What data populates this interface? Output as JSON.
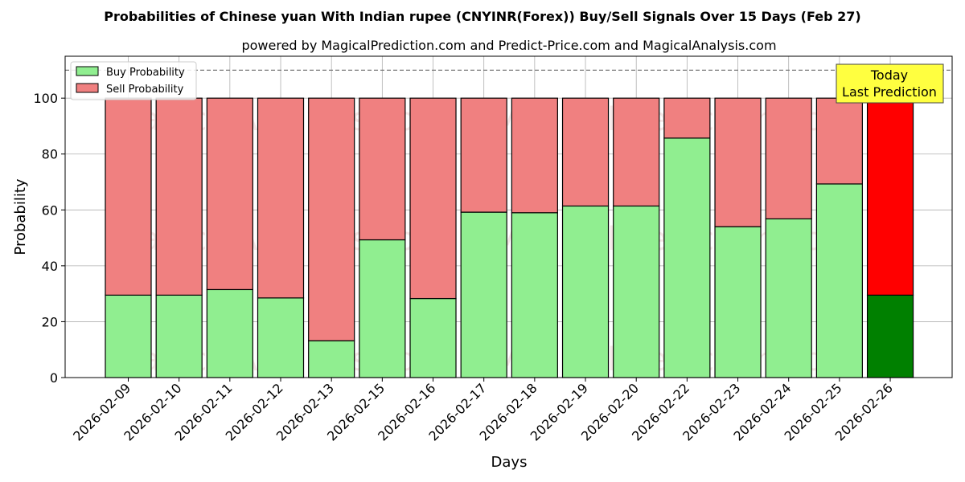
{
  "chart_data": {
    "type": "bar",
    "stacked": true,
    "title": "Probabilities of Chinese yuan With Indian rupee (CNYINR(Forex)) Buy/Sell Signals Over 15 Days (Feb 27)",
    "subtitle": "powered by MagicalPrediction.com and Predict-Price.com and MagicalAnalysis.com",
    "xlabel": "Days",
    "ylabel": "Probability",
    "ylim": [
      0,
      115
    ],
    "yticks": [
      0,
      20,
      40,
      60,
      80,
      100
    ],
    "reference_line": 110,
    "grid": true,
    "legend_position": "top-left",
    "categories": [
      "2026-02-09",
      "2026-02-10",
      "2026-02-11",
      "2026-02-12",
      "2026-02-13",
      "2026-02-15",
      "2026-02-16",
      "2026-02-17",
      "2026-02-18",
      "2026-02-19",
      "2026-02-20",
      "2026-02-22",
      "2026-02-23",
      "2026-02-24",
      "2026-02-25",
      "2026-02-26"
    ],
    "series": [
      {
        "name": "Buy Probability",
        "color": "#90EE90",
        "values": [
          29.5,
          29.5,
          31.5,
          28.5,
          13.2,
          49.3,
          28.3,
          59.2,
          59.0,
          61.4,
          61.4,
          85.7,
          54.0,
          56.8,
          69.3,
          29.5
        ]
      },
      {
        "name": "Sell Probability",
        "color": "#F08080",
        "values": [
          70.5,
          70.5,
          68.5,
          71.5,
          86.8,
          50.7,
          71.7,
          40.8,
          41.0,
          38.6,
          38.6,
          14.3,
          46.0,
          43.2,
          30.7,
          70.5
        ]
      }
    ],
    "today_colors": {
      "buy": "#008000",
      "sell": "#FF0000"
    },
    "annotation": {
      "line1": "Today",
      "line2": "Last Prediction",
      "color": "#FFFF40"
    },
    "watermarks": [
      "MagicalAnalysis.com",
      "MagicalPrediction.com"
    ]
  }
}
